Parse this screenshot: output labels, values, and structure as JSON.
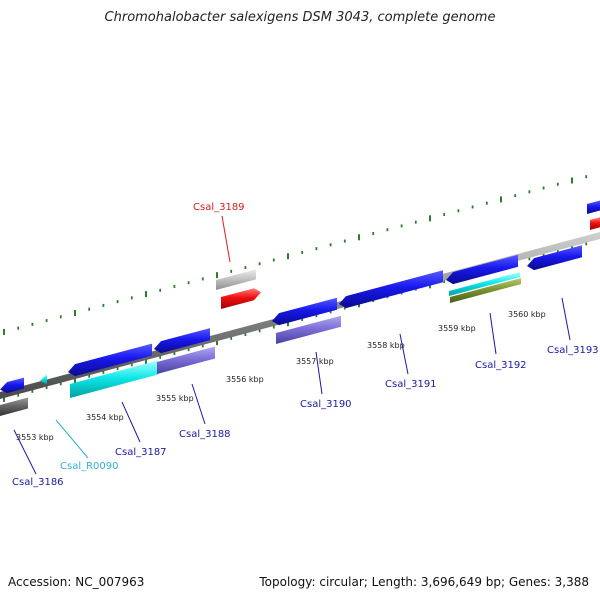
{
  "title": "Chromohalobacter salexigens DSM 3043, complete genome",
  "footer": {
    "accession": "Accession: NC_007963",
    "summary": "Topology: circular; Length: 3,696,649 bp; Genes: 3,388"
  },
  "colors": {
    "backbone": "#8a8a8a",
    "ticks": "#2e7d2e",
    "label_blue": "#1a1aa0",
    "label_red": "#d02020",
    "label_cyan": "#30b0d0",
    "tick_label": "#222222"
  },
  "genome_map": {
    "kbp_labels": [
      "3553 kbp",
      "3554 kbp",
      "3555 kbp",
      "3556 kbp",
      "3557 kbp",
      "3558 kbp",
      "3559 kbp",
      "3560 kbp"
    ],
    "features": [
      {
        "label": "Csal_3186",
        "color": "#1a1aa0"
      },
      {
        "label": "Csal_R0090",
        "color": "#30b0d0"
      },
      {
        "label": "Csal_3187",
        "color": "#1a1aa0"
      },
      {
        "label": "Csal_3188",
        "color": "#1a1aa0"
      },
      {
        "label": "Csal_3189",
        "color": "#d02020"
      },
      {
        "label": "Csal_3190",
        "color": "#1a1aa0"
      },
      {
        "label": "Csal_3191",
        "color": "#1a1aa0"
      },
      {
        "label": "Csal_3192",
        "color": "#1a1aa0"
      },
      {
        "label": "Csal_3193",
        "color": "#1a1aa0"
      }
    ]
  }
}
